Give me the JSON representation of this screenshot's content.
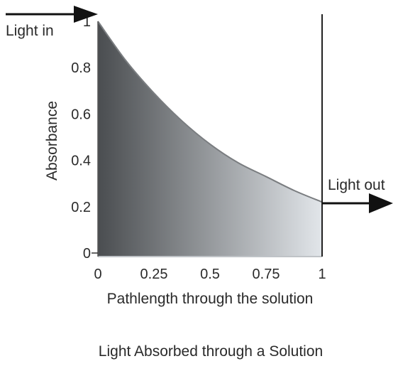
{
  "chart_data": {
    "type": "area",
    "title": "Light Absorbed through a Solution",
    "xlabel": "Pathlength through the solution",
    "ylabel": "Absorbance",
    "xlim": [
      0,
      1
    ],
    "ylim": [
      0,
      1
    ],
    "x_ticks": [
      0,
      0.25,
      0.5,
      0.75,
      1
    ],
    "x_tick_labels": [
      "0",
      "0.25",
      "0.5",
      "0.75",
      "1"
    ],
    "y_ticks": [
      0,
      0.2,
      0.4,
      0.6,
      0.8,
      1
    ],
    "y_tick_labels": [
      "0",
      "0.2",
      "0.4",
      "0.6",
      "0.8",
      "1"
    ],
    "series": [
      {
        "x": [
          0,
          0.125,
          0.25,
          0.375,
          0.5,
          0.625,
          0.75,
          0.875,
          1
        ],
        "y": [
          1.0,
          0.83,
          0.69,
          0.57,
          0.47,
          0.39,
          0.33,
          0.27,
          0.22
        ]
      }
    ],
    "fill_gradient": [
      "#4a4d50",
      "#e2e6ea"
    ],
    "annotations": {
      "light_in": "Light in",
      "light_out": "Light out"
    },
    "grid": false
  }
}
